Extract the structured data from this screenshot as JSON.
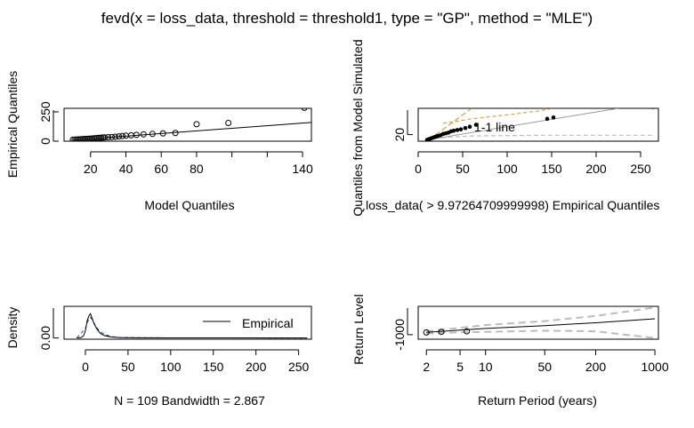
{
  "title": "fevd(x = loss_data, threshold = threshold1, type = \"GP\", method = \"MLE\")",
  "chart_data": [
    {
      "type": "scatter",
      "panel": "qq-model",
      "xlabel": "Model Quantiles",
      "ylabel": "Empirical Quantiles",
      "xticks": [
        20,
        40,
        60,
        80,
        100,
        120,
        140
      ],
      "xtick_labels": [
        "20",
        "40",
        "60",
        "80",
        "",
        "",
        "140"
      ],
      "yticks": [
        0,
        250
      ],
      "xlim": [
        5,
        145
      ],
      "ylim": [
        0,
        280
      ],
      "points": [
        [
          10,
          12
        ],
        [
          11,
          13
        ],
        [
          12,
          14
        ],
        [
          13,
          15
        ],
        [
          14,
          16
        ],
        [
          15,
          17
        ],
        [
          16,
          18
        ],
        [
          17,
          19
        ],
        [
          18,
          20
        ],
        [
          19,
          21
        ],
        [
          20,
          22
        ],
        [
          21,
          23
        ],
        [
          22,
          25
        ],
        [
          23,
          26
        ],
        [
          24,
          27
        ],
        [
          25,
          28
        ],
        [
          26,
          29
        ],
        [
          27,
          31
        ],
        [
          28,
          32
        ],
        [
          30,
          34
        ],
        [
          32,
          36
        ],
        [
          34,
          38
        ],
        [
          36,
          41
        ],
        [
          38,
          44
        ],
        [
          40,
          47
        ],
        [
          43,
          50
        ],
        [
          46,
          54
        ],
        [
          50,
          58
        ],
        [
          55,
          62
        ],
        [
          61,
          66
        ],
        [
          68,
          70
        ],
        [
          80,
          145
        ],
        [
          98,
          155
        ],
        [
          141,
          285
        ]
      ],
      "line": [
        [
          10,
          10
        ],
        [
          145,
          160
        ]
      ]
    },
    {
      "type": "scatter",
      "panel": "qq-simulated",
      "xlabel": "loss_data( > 9.97264709999998) Empirical Quantiles",
      "ylabel": "Quantiles from Model Simulated",
      "xticks": [
        0,
        50,
        100,
        150,
        200,
        250
      ],
      "yticks": [
        20
      ],
      "xlim": [
        0,
        270
      ],
      "ylim": [
        10,
        60
      ],
      "annotation": "1-1 line",
      "points": [
        [
          10,
          12
        ],
        [
          12,
          13
        ],
        [
          14,
          14
        ],
        [
          16,
          15
        ],
        [
          18,
          16
        ],
        [
          20,
          17
        ],
        [
          22,
          18
        ],
        [
          25,
          19
        ],
        [
          28,
          21
        ],
        [
          31,
          22
        ],
        [
          34,
          23
        ],
        [
          37,
          25
        ],
        [
          40,
          26
        ],
        [
          44,
          27
        ],
        [
          48,
          28
        ],
        [
          53,
          30
        ],
        [
          58,
          32
        ],
        [
          65,
          35
        ],
        [
          145,
          44
        ],
        [
          152,
          46
        ],
        [
          264,
          62
        ]
      ],
      "ci_upper": [
        [
          28,
          37
        ],
        [
          60,
          44
        ],
        [
          100,
          50
        ],
        [
          135,
          56
        ],
        [
          160,
          62
        ]
      ],
      "ci_lower": [
        [
          10,
          14
        ],
        [
          60,
          18
        ],
        [
          140,
          19
        ],
        [
          265,
          19
        ]
      ],
      "regression_line": [
        [
          10,
          12
        ],
        [
          225,
          60
        ]
      ],
      "one_one_line": [
        [
          5,
          5
        ],
        [
          60,
          60
        ]
      ]
    },
    {
      "type": "line",
      "panel": "density",
      "xlabel": "N = 109   Bandwidth = 2.867",
      "ylabel": "Density",
      "legend": "Empirical",
      "legend_position": "bottom-right",
      "xticks": [
        0,
        50,
        100,
        150,
        200,
        250
      ],
      "yticks": [
        0.0
      ],
      "ytick_labels": [
        "0.00"
      ],
      "xlim": [
        -25,
        265
      ],
      "ylim": [
        -0.005,
        0.13
      ],
      "empirical": [
        [
          -10,
          0
        ],
        [
          -5,
          0.002
        ],
        [
          -2,
          0.01
        ],
        [
          0,
          0.03
        ],
        [
          2,
          0.07
        ],
        [
          4,
          0.09
        ],
        [
          6,
          0.1
        ],
        [
          8,
          0.08
        ],
        [
          10,
          0.06
        ],
        [
          13,
          0.04
        ],
        [
          17,
          0.02
        ],
        [
          22,
          0.01
        ],
        [
          30,
          0.004
        ],
        [
          40,
          0.002
        ],
        [
          60,
          0.001
        ],
        [
          100,
          0.0005
        ],
        [
          140,
          0.0003
        ],
        [
          260,
          0
        ]
      ],
      "modeled": [
        [
          -10,
          0
        ],
        [
          0,
          0.04
        ],
        [
          4,
          0.08
        ],
        [
          6,
          0.085
        ],
        [
          8,
          0.075
        ],
        [
          12,
          0.05
        ],
        [
          16,
          0.03
        ],
        [
          22,
          0.015
        ],
        [
          30,
          0.006
        ],
        [
          40,
          0.002
        ],
        [
          70,
          0.001
        ],
        [
          120,
          0.0004
        ],
        [
          260,
          0
        ]
      ]
    },
    {
      "type": "line",
      "panel": "return-level",
      "xlabel": "Return Period (years)",
      "ylabel": "Return Level",
      "log_x": true,
      "xticks": [
        2,
        5,
        10,
        50,
        200,
        1000
      ],
      "yticks": [
        -1000
      ],
      "xlim": [
        1.6,
        1100
      ],
      "ylim": [
        -1400,
        1500
      ],
      "points": [
        [
          2,
          -800
        ],
        [
          3,
          -750
        ],
        [
          6,
          -700
        ]
      ],
      "estimate": [
        [
          2,
          -800
        ],
        [
          5,
          -600
        ],
        [
          10,
          -450
        ],
        [
          50,
          -200
        ],
        [
          200,
          50
        ],
        [
          1000,
          400
        ]
      ],
      "ci_upper": [
        [
          2,
          -700
        ],
        [
          5,
          -400
        ],
        [
          10,
          -150
        ],
        [
          50,
          200
        ],
        [
          200,
          650
        ],
        [
          1000,
          1400
        ]
      ],
      "ci_lower": [
        [
          2,
          -900
        ],
        [
          5,
          -800
        ],
        [
          10,
          -750
        ],
        [
          50,
          -650
        ],
        [
          200,
          -700
        ],
        [
          1000,
          -1300
        ]
      ]
    }
  ]
}
